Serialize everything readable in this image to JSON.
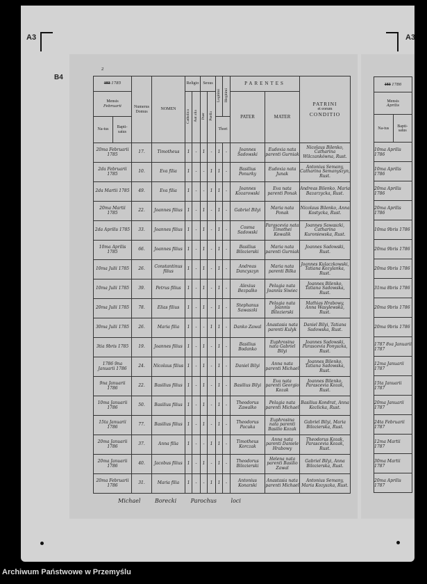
{
  "labels": {
    "left_top": "A3",
    "right_top": "A3",
    "inner": "B4"
  },
  "page_number": "2",
  "credit": "Archiwum Państwowe w Przemyślu",
  "header": {
    "year_printed": "183",
    "year_written": "1785",
    "mensis": "Mensis",
    "mensis_value": "Februarii",
    "natus": "Na-tus",
    "baptisatus": "Bapti-satus",
    "numerus_domus": "Numerus Domus",
    "nomen": "NOMEN",
    "religio": "Religio",
    "catholica": "Catholica",
    "aut_alia": "Aut alia",
    "sexus": "Sexus",
    "puer": "Puer",
    "puella": "Puella",
    "legitimi": "Legitimi",
    "illegitimi": "Illegitimi",
    "thori": "Thori",
    "parentes": "PARENTES",
    "pater": "PATER",
    "mater": "MATER",
    "patrini": "PATRINI",
    "et_eorum": "et eorum",
    "conditio": "CONDITIO"
  },
  "rows": [
    {
      "date": "20ma Februarii 1785",
      "domus": "17.",
      "nomen": "Timotheus",
      "marks": [
        "1",
        "-",
        "1",
        "-",
        "1",
        "-"
      ],
      "pater": "Joannes Sadowski",
      "mater": "Eudoxia nata parenti Gurniak",
      "patrini": "Nicolaus Bilenko, Catharina Wilczankówna, Rust."
    },
    {
      "date": "2da Februarii 1785",
      "domus": "10.",
      "nomen": "Eva filia",
      "marks": [
        "1",
        "-",
        "-",
        "1",
        "1",
        "-"
      ],
      "pater": "Basilius Ponurky",
      "mater": "Eudoxia nata Junak",
      "patrini": "Antonius Semany, Catharina Semanyszyn, Rust."
    },
    {
      "date": "2da Martii 1785",
      "domus": "49.",
      "nomen": "Eva filia",
      "marks": [
        "1",
        "-",
        "-",
        "1",
        "1",
        "-"
      ],
      "pater": "Joannes Kozarowski",
      "mater": "Eva nata parenti Ponak",
      "patrini": "Andreas Bilenko, Maria Bazarzycka, Rust."
    },
    {
      "date": "20ma Martii 1785",
      "domus": "22.",
      "nomen": "Joannes filius",
      "marks": [
        "1",
        "-",
        "1",
        "-",
        "1",
        "-"
      ],
      "pater": "Gabriel Bilyi",
      "mater": "Maria nata Ponak",
      "patrini": "Nicolaus Bilenko, Anna Kostycka, Rust."
    },
    {
      "date": "2da Aprilis 1785",
      "domus": "33.",
      "nomen": "Joannes filius",
      "marks": [
        "1",
        "-",
        "1",
        "-",
        "1",
        "-"
      ],
      "pater": "Cosma Sadowski",
      "mater": "Parascevia nata Timothei Kowalik",
      "patrini": "Joannes Sawaszki, Catharina Kuroniewska, Rust."
    },
    {
      "date": "10ma Aprilis 1785",
      "domus": "66.",
      "nomen": "Joannes filius",
      "marks": [
        "1",
        "-",
        "1",
        "-",
        "1",
        "-"
      ],
      "pater": "Basilius Bilozierski",
      "mater": "Maria nata parenti Gurniak",
      "patrini": "Joannes Sadowski, Rust."
    },
    {
      "date": "10ma Julii 1785",
      "domus": "26.",
      "nomen": "Constantinus filius",
      "marks": [
        "1",
        "-",
        "1",
        "-",
        "1",
        "-"
      ],
      "pater": "Andreas Dancyszyn",
      "mater": "Maria nata parenti Bilka",
      "patrini": "Joannes Kulaczkowski, Tatiana Kozylanka, Rust."
    },
    {
      "date": "10ma Julii 1785",
      "domus": "39.",
      "nomen": "Petrus filius",
      "marks": [
        "1",
        "-",
        "1",
        "-",
        "1",
        "-"
      ],
      "pater": "Alexius Bezpalko",
      "mater": "Pelagia nata Joannis Siwiec",
      "patrini": "Joannes Bilenko, Tatiana Sadowska, Rust."
    },
    {
      "date": "20ma Julii 1785",
      "domus": "78.",
      "nomen": "Elias filius",
      "marks": [
        "1",
        "-",
        "1",
        "-",
        "1",
        "-"
      ],
      "pater": "Stephanus Sawaszki",
      "mater": "Pelagia nata Joannis Bilozierski",
      "patrini": "Mathias Hrabowy, Anna Wasylewska, Rust."
    },
    {
      "date": "30ma Julii 1785",
      "domus": "26.",
      "nomen": "Maria filia",
      "marks": [
        "1",
        "-",
        "-",
        "1",
        "1",
        "-"
      ],
      "pater": "Danko Zawal",
      "mater": "Anastasia nata parenti Kulyk",
      "patrini": "Daniel Bilyi, Tatiana Sadowska, Rust."
    },
    {
      "date": "3tia 9bris 1785",
      "domus": "19.",
      "nomen": "Joannes filius",
      "marks": [
        "1",
        "-",
        "1",
        "-",
        "1",
        "-"
      ],
      "pater": "Basilius Bodanko",
      "mater": "Euphrosina nata Gabriel Bilyi",
      "patrini": "Joannes Sadowski, Parascevia Ponyszka, Rust."
    },
    {
      "date": "1786 9na Januarii 1786",
      "domus": "24.",
      "nomen": "Nicolaus filius",
      "marks": [
        "1",
        "-",
        "1",
        "-",
        "1",
        "-"
      ],
      "pater": "Daniel Bilyi",
      "mater": "Anna nata parenti Michael",
      "patrini": "Joannes Bilenko, Tatiana Sadowska, Rust."
    },
    {
      "date": "9na Januarii 1786",
      "domus": "22.",
      "nomen": "Basilius filius",
      "marks": [
        "1",
        "-",
        "1",
        "-",
        "1",
        "-"
      ],
      "pater": "Basilius Bilyi",
      "mater": "Eva nata parenti Georgio Kozak",
      "patrini": "Joannes Bilenko, Parascevia Kozak, Rust."
    },
    {
      "date": "10ma Januarii 1786",
      "domus": "50.",
      "nomen": "Basilius filius",
      "marks": [
        "1",
        "-",
        "1",
        "-",
        "1",
        "-"
      ],
      "pater": "Theodorus Zawalko",
      "mater": "Pelagia nata parenti Michael",
      "patrini": "Basilius Kondrat, Anna Kozlicka, Rust."
    },
    {
      "date": "15ta Januarii 1786",
      "domus": "77.",
      "nomen": "Basilius filius",
      "marks": [
        "1",
        "-",
        "1",
        "-",
        "1",
        "-"
      ],
      "pater": "Theodorus Pacuka",
      "mater": "Euphrosina nata parenti Basilio Kozak",
      "patrini": "Gabriel Bilyi, Maria Bilozierska, Rust."
    },
    {
      "date": "20ma Januarii 1786",
      "domus": "37.",
      "nomen": "Anna filia",
      "marks": [
        "1",
        "-",
        "-",
        "1",
        "1",
        "-"
      ],
      "pater": "Timotheus Korczak",
      "mater": "Anna nata parenti Daniele Hrabowy",
      "patrini": "Theodorus Kozak, Parascevia Kozak, Rust."
    },
    {
      "date": "20ma Januarii 1786",
      "domus": "40.",
      "nomen": "Jacobus filius",
      "marks": [
        "1",
        "-",
        "1",
        "-",
        "1",
        "-"
      ],
      "pater": "Theodorus Bilozierski",
      "mater": "Helena nata parenti Basilio Zawal",
      "patrini": "Gabriel Bilyi, Anna Bilozierska, Rust."
    },
    {
      "date": "20ma Februarii 1786",
      "domus": "31.",
      "nomen": "Maria filia",
      "marks": [
        "1",
        "-",
        "-",
        "1",
        "1",
        "-"
      ],
      "pater": "Antonius Konarski",
      "mater": "Anastasia nata parenti Michael",
      "patrini": "Antonius Semany, Maria Kozyszka, Rust."
    }
  ],
  "signature": "Michael Borecki Parochus loci",
  "right_page": {
    "year_printed": "183",
    "year_written": "1786",
    "mensis": "Mensis",
    "mensis_value": "Aprilis",
    "natus": "Na-tus",
    "baptisatus": "Bapti-satus",
    "dates": [
      "10ma Aprilis 1786",
      "10ma Aprilis 1786",
      "20ma Aprilis 1786",
      "20ma Aprilis 1786",
      "10ma 9bris 1786",
      "20ma 9bris 1786",
      "20ma 9bris 1786",
      "31ma 8bris 1786",
      "20ma 9bris 1786",
      "20ma 9bris 1786",
      "1787 8va Januarii 1787",
      "12ma Januarii 1787",
      "15ta Januarii 1787",
      "20ma Januarii 1787",
      "24ta Februarii 1787",
      "12ma Martii 1787",
      "30ma Martii 1787",
      "20ma Aprilis 1787"
    ]
  }
}
